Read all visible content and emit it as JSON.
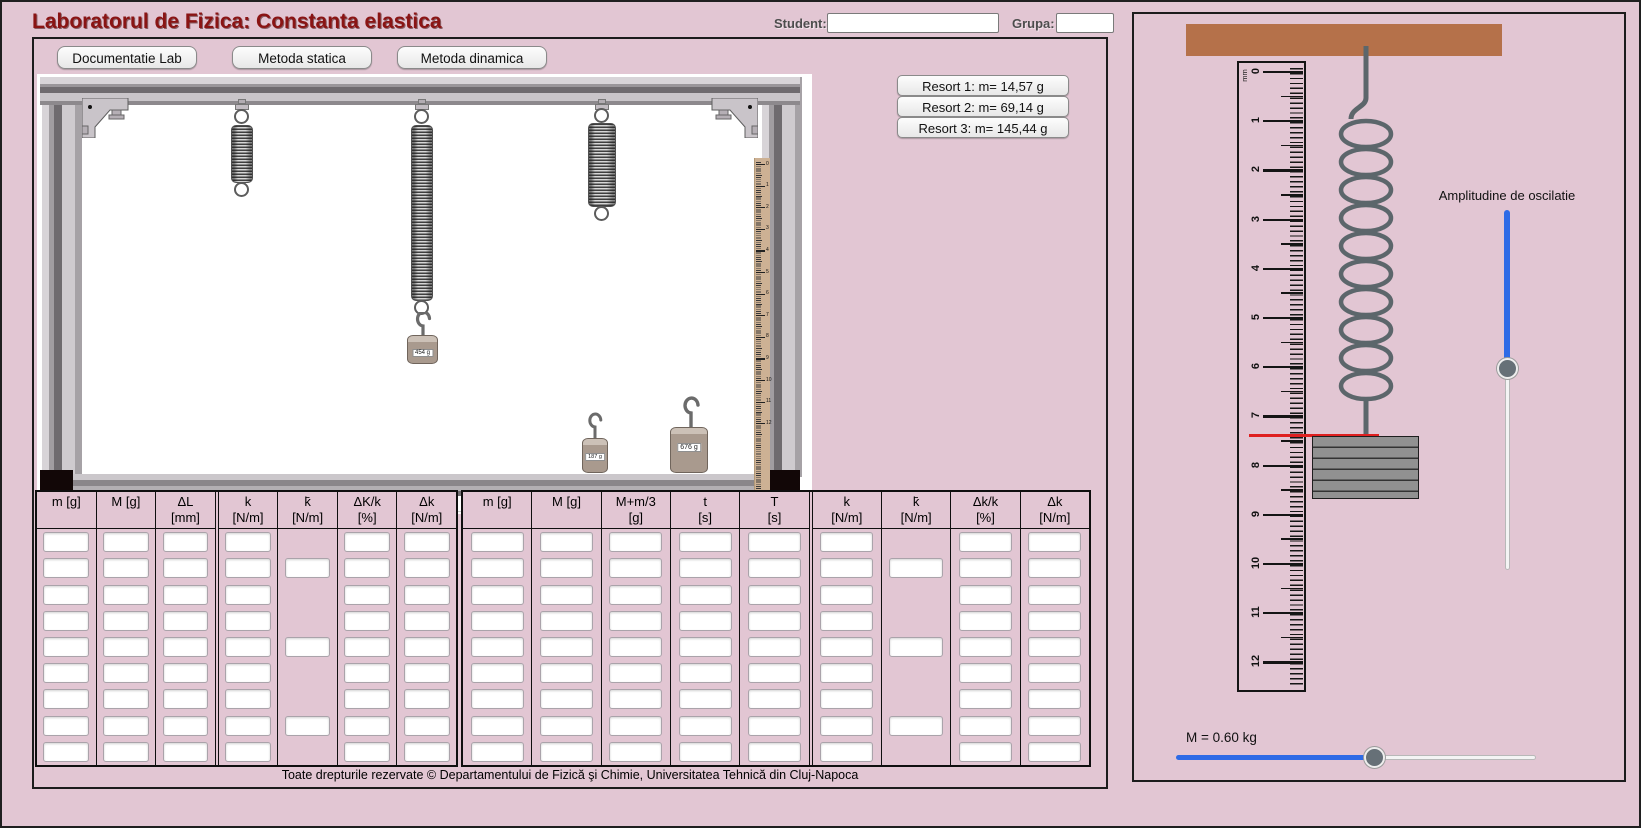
{
  "header": {
    "title": "Laboratorul de Fizica: Constanta elastica",
    "student_label": "Student:",
    "student_value": "",
    "grupa_label": "Grupa:",
    "grupa_value": ""
  },
  "toolbar": {
    "buttons": [
      "Documentatie Lab",
      "Metoda statica",
      "Metoda dinamica"
    ]
  },
  "springs_info": {
    "buttons": [
      "Resort 1: m= 14,57 g",
      "Resort 2: m= 69,14 g",
      "Resort 3: m= 145,44 g"
    ]
  },
  "simulation": {
    "hanging_weight_label": "454 g",
    "floor_weight_small_label": "187 g",
    "floor_weight_large_label": "676 g",
    "ruler_numbers": [
      "0",
      "1",
      "2",
      "3",
      "4",
      "5",
      "6",
      "7",
      "8",
      "9",
      "10",
      "11",
      "12"
    ]
  },
  "tables": [
    {
      "rows": 9,
      "sparse_rows": [
        2,
        5,
        8
      ],
      "columns": [
        {
          "l1": "m [g]",
          "l2": ""
        },
        {
          "l1": "M [g]",
          "l2": ""
        },
        {
          "l1": "ΔL",
          "l2": "[mm]"
        },
        {
          "l1": "k",
          "l2": "[N/m]",
          "thick": true
        },
        {
          "l1": "k̄",
          "l2": "[N/m]",
          "sparse": true
        },
        {
          "l1": "ΔK/k",
          "l2": "[%]"
        },
        {
          "l1": "Δk",
          "l2": "[N/m]"
        }
      ]
    },
    {
      "rows": 9,
      "sparse_rows": [
        2,
        5,
        8
      ],
      "columns": [
        {
          "l1": "m [g]",
          "l2": ""
        },
        {
          "l1": "M [g]",
          "l2": ""
        },
        {
          "l1": "M+m/3",
          "l2": "[g]"
        },
        {
          "l1": "t",
          "l2": "[s]"
        },
        {
          "l1": "T",
          "l2": "[s]"
        },
        {
          "l1": "k",
          "l2": "[N/m]",
          "thick": true
        },
        {
          "l1": "k̄",
          "l2": "[N/m]",
          "sparse": true
        },
        {
          "l1": "Δk/k",
          "l2": "[%]"
        },
        {
          "l1": "Δk",
          "l2": "[N/m]"
        }
      ]
    }
  ],
  "footer": {
    "text": "Toate drepturile rezervate © Departamentului de Fizică şi Chimie, Universitatea Tehnică din Cluj-Napoca"
  },
  "right_panel": {
    "ruler_unit": "mm",
    "ruler_numbers": [
      "0",
      "1",
      "2",
      "3",
      "4",
      "5",
      "6",
      "7",
      "8",
      "9",
      "10",
      "11",
      "12"
    ],
    "amplitude_label": "Amplitudine de oscilatie",
    "mass_label": "M = 0.60 kg",
    "amplitude_thumb_percent": 44,
    "mass_thumb_percent": 55,
    "colors": {
      "slider_blue": "#2e6be6",
      "marker_red": "#df2020",
      "ceiling_brown": "#b5714a",
      "background": "#e2c6d3"
    }
  }
}
